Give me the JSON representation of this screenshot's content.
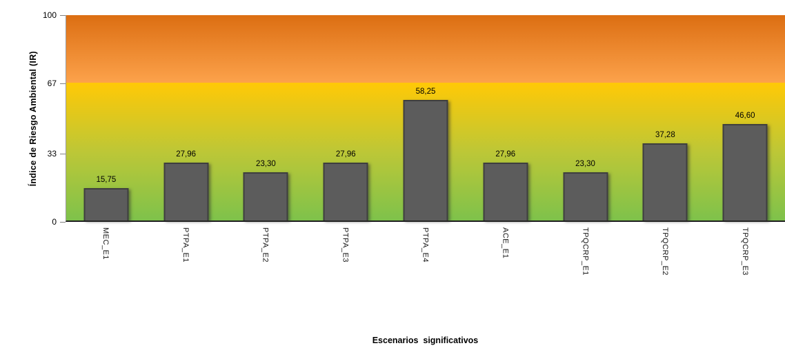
{
  "chart_data": {
    "type": "bar",
    "title": "",
    "xlabel": "Escenarios  significativos",
    "ylabel": "Índice de Riesgo Ambiental (IR)",
    "categories": [
      "MEC_E1",
      "PTPA_E1",
      "PTPA_E2",
      "PTPA_E3",
      "PTPA_E4",
      "ACE_E1",
      "TPQCRP_E1",
      "TPQCRP_E2",
      "TPQCRP_E3"
    ],
    "values": [
      15.75,
      27.96,
      23.3,
      27.96,
      58.25,
      27.96,
      23.3,
      37.28,
      46.6
    ],
    "value_labels": [
      "15,75",
      "27,96",
      "23,30",
      "27,96",
      "58,25",
      "27,96",
      "23,30",
      "37,28",
      "46,60"
    ],
    "ylim": [
      0,
      100
    ],
    "y_ticks": [
      0,
      33,
      67,
      100
    ],
    "y_tick_labels": [
      "0",
      "33",
      "67",
      "100"
    ],
    "grid": false,
    "legend": false,
    "background_bands": [
      {
        "range": [
          67,
          100
        ],
        "gradient": [
          "#dc6e12",
          "#fca24b"
        ]
      },
      {
        "range": [
          0,
          67
        ],
        "gradient": [
          "#ffc906",
          "#7ec24b"
        ]
      }
    ]
  },
  "colors": {
    "orange_top": "#dc6e12",
    "orange_bottom": "#fca24b",
    "yellow": "#ffc906",
    "olive_mid": "#bcc737",
    "green_bottom": "#7ec24b",
    "bar_fill": "#5c5c5c",
    "bar_border": "#3e3e3e",
    "axis_line": "#1f1f1f",
    "tick_mark": "#7f7f7f",
    "text": "#000000"
  }
}
